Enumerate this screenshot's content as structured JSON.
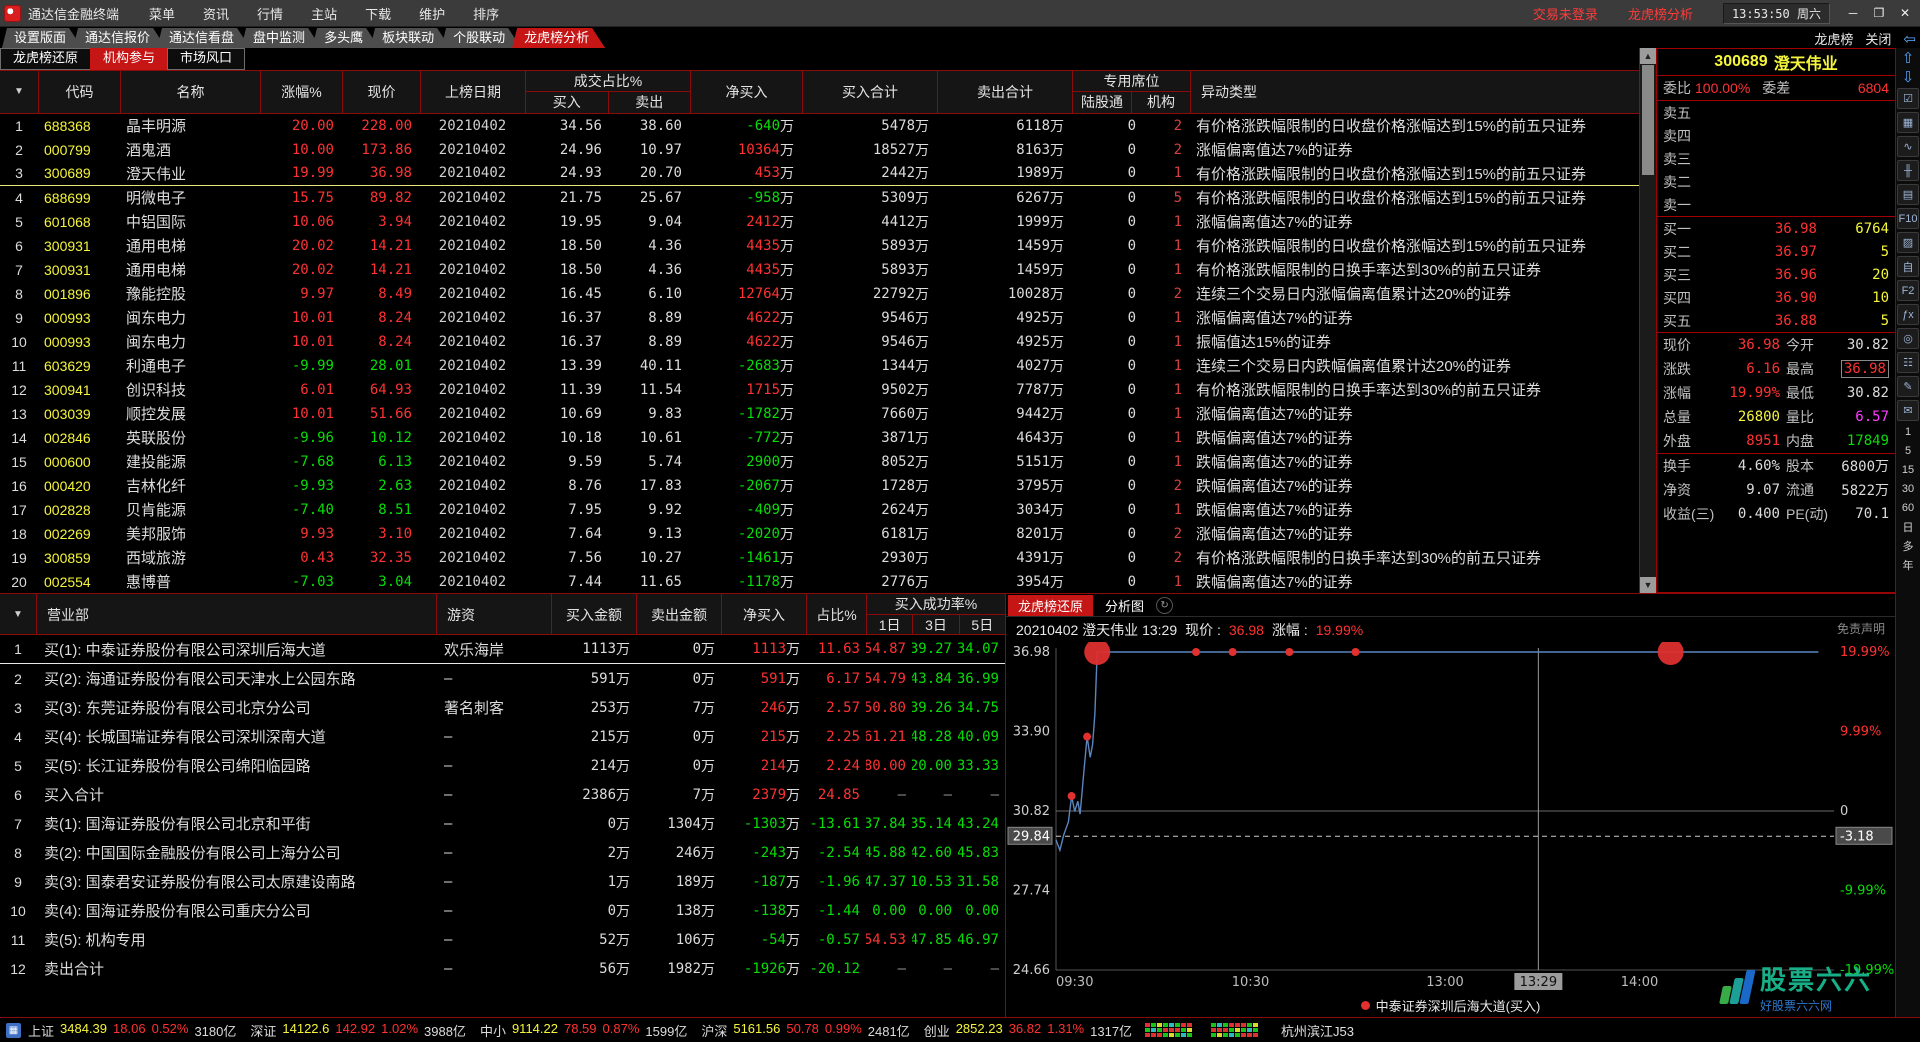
{
  "titlebar": {
    "app": "通达信金融终端",
    "menus": [
      "菜单",
      "资讯",
      "行情",
      "主站",
      "下载",
      "维护",
      "排序"
    ],
    "trade_status": "交易未登录",
    "page_title": "龙虎榜分析",
    "time": "13:53:50",
    "weekday": "周六",
    "window_buttons": [
      "─",
      "❐",
      "✕"
    ]
  },
  "tabs": {
    "items": [
      "设置版面",
      "通达信报价",
      "通达信看盘",
      "盘中监测",
      "多头鹰",
      "板块联动",
      "个股联动",
      "龙虎榜分析"
    ],
    "active_index": 7,
    "right_label": "龙虎榜",
    "close_label": "关闭"
  },
  "subtabs": {
    "items": [
      "龙虎榜还原",
      "机构参与",
      "市场风口"
    ],
    "active_index": 1
  },
  "glyphs": {
    "sort": "▼",
    "scroll_up": "▲",
    "scroll_down": "▼",
    "back_arrow": "⇦",
    "refresh": "↻",
    "menu_grid": "▦"
  },
  "main_table": {
    "columns": {
      "index": "▼",
      "code": "代码",
      "name": "名称",
      "pct": "涨幅%",
      "price": "现价",
      "date": "上榜日期",
      "trade_group": "成交占比%",
      "trade_buy": "买入",
      "trade_sell": "卖出",
      "net": "净买入",
      "buy_total": "买入合计",
      "sell_total": "卖出合计",
      "seat_group": "专用席位",
      "seat_lgt": "陆股通",
      "seat_org": "机构",
      "type": "异动类型"
    },
    "selected_row": 2,
    "rows": [
      [
        "688368",
        "晶丰明源",
        "20.00",
        "228.00",
        "20210402",
        "34.56",
        "38.60",
        "-640万",
        "5478万",
        "6118万",
        "0",
        "2",
        "有价格涨跌幅限制的日收盘价格涨幅达到15%的前五只证券"
      ],
      [
        "000799",
        "酒鬼酒",
        "10.00",
        "173.86",
        "20210402",
        "24.96",
        "10.97",
        "10364万",
        "18527万",
        "8163万",
        "0",
        "2",
        "涨幅偏离值达7%的证券"
      ],
      [
        "300689",
        "澄天伟业",
        "19.99",
        "36.98",
        "20210402",
        "24.93",
        "20.70",
        "453万",
        "2442万",
        "1989万",
        "0",
        "1",
        "有价格涨跌幅限制的日收盘价格涨幅达到15%的前五只证券"
      ],
      [
        "688699",
        "明微电子",
        "15.75",
        "89.82",
        "20210402",
        "21.75",
        "25.67",
        "-958万",
        "5309万",
        "6267万",
        "0",
        "5",
        "有价格涨跌幅限制的日收盘价格涨幅达到15%的前五只证券"
      ],
      [
        "601068",
        "中铝国际",
        "10.06",
        "3.94",
        "20210402",
        "19.95",
        "9.04",
        "2412万",
        "4412万",
        "1999万",
        "0",
        "1",
        "涨幅偏离值达7%的证券"
      ],
      [
        "300931",
        "通用电梯",
        "20.02",
        "14.21",
        "20210402",
        "18.50",
        "4.36",
        "4435万",
        "5893万",
        "1459万",
        "0",
        "1",
        "有价格涨跌幅限制的日收盘价格涨幅达到15%的前五只证券"
      ],
      [
        "300931",
        "通用电梯",
        "20.02",
        "14.21",
        "20210402",
        "18.50",
        "4.36",
        "4435万",
        "5893万",
        "1459万",
        "0",
        "1",
        "有价格涨跌幅限制的日换手率达到30%的前五只证券"
      ],
      [
        "001896",
        "豫能控股",
        "9.97",
        "8.49",
        "20210402",
        "16.45",
        "6.10",
        "12764万",
        "22792万",
        "10028万",
        "0",
        "2",
        "连续三个交易日内涨幅偏离值累计达20%的证券"
      ],
      [
        "000993",
        "闽东电力",
        "10.01",
        "8.24",
        "20210402",
        "16.37",
        "8.89",
        "4622万",
        "9546万",
        "4925万",
        "0",
        "1",
        "涨幅偏离值达7%的证券"
      ],
      [
        "000993",
        "闽东电力",
        "10.01",
        "8.24",
        "20210402",
        "16.37",
        "8.89",
        "4622万",
        "9546万",
        "4925万",
        "0",
        "1",
        "振幅值达15%的证券"
      ],
      [
        "603629",
        "利通电子",
        "-9.99",
        "28.01",
        "20210402",
        "13.39",
        "40.11",
        "-2683万",
        "1344万",
        "4027万",
        "0",
        "1",
        "连续三个交易日内跌幅偏离值累计达20%的证券"
      ],
      [
        "300941",
        "创识科技",
        "6.01",
        "64.93",
        "20210402",
        "11.39",
        "11.54",
        "1715万",
        "9502万",
        "7787万",
        "0",
        "1",
        "有价格涨跌幅限制的日换手率达到30%的前五只证券"
      ],
      [
        "003039",
        "顺控发展",
        "10.01",
        "51.66",
        "20210402",
        "10.69",
        "9.83",
        "-1782万",
        "7660万",
        "9442万",
        "0",
        "1",
        "涨幅偏离值达7%的证券"
      ],
      [
        "002846",
        "英联股份",
        "-9.96",
        "10.12",
        "20210402",
        "10.18",
        "10.61",
        "-772万",
        "3871万",
        "4643万",
        "0",
        "1",
        "跌幅偏离值达7%的证券"
      ],
      [
        "000600",
        "建投能源",
        "-7.68",
        "6.13",
        "20210402",
        "9.59",
        "5.74",
        "2900万",
        "8052万",
        "5151万",
        "0",
        "1",
        "跌幅偏离值达7%的证券",
        "dn"
      ],
      [
        "000420",
        "吉林化纤",
        "-9.93",
        "2.63",
        "20210402",
        "8.76",
        "17.83",
        "-2067万",
        "1728万",
        "3795万",
        "0",
        "2",
        "跌幅偏离值达7%的证券"
      ],
      [
        "002828",
        "贝肯能源",
        "-7.40",
        "8.51",
        "20210402",
        "7.95",
        "9.92",
        "-409万",
        "2624万",
        "3034万",
        "0",
        "1",
        "跌幅偏离值达7%的证券"
      ],
      [
        "002269",
        "美邦服饰",
        "9.93",
        "3.10",
        "20210402",
        "7.64",
        "9.13",
        "-2020万",
        "6181万",
        "8201万",
        "0",
        "2",
        "涨幅偏离值达7%的证券"
      ],
      [
        "300859",
        "西域旅游",
        "0.43",
        "32.35",
        "20210402",
        "7.56",
        "10.27",
        "-1461万",
        "2930万",
        "4391万",
        "0",
        "2",
        "有价格涨跌幅限制的日换手率达到30%的前五只证券"
      ],
      [
        "002554",
        "惠博普",
        "-7.03",
        "3.04",
        "20210402",
        "7.44",
        "11.65",
        "-1178万",
        "2776万",
        "3954万",
        "0",
        "1",
        "跌幅偏离值达7%的证券"
      ]
    ]
  },
  "quote": {
    "code": "300689",
    "name": "澄天伟业",
    "weibi_label": "委比",
    "weibi": "100.00%",
    "weicha_label": "委差",
    "weicha": "6804",
    "sell_levels": [
      {
        "l": "卖五",
        "p": "",
        "q": ""
      },
      {
        "l": "卖四",
        "p": "",
        "q": ""
      },
      {
        "l": "卖三",
        "p": "",
        "q": ""
      },
      {
        "l": "卖二",
        "p": "",
        "q": ""
      },
      {
        "l": "卖一",
        "p": "",
        "q": ""
      }
    ],
    "buy_levels": [
      {
        "l": "买一",
        "p": "36.98",
        "q": "6764"
      },
      {
        "l": "买二",
        "p": "36.97",
        "q": "5"
      },
      {
        "l": "买三",
        "p": "36.96",
        "q": "20"
      },
      {
        "l": "买四",
        "p": "36.90",
        "q": "10"
      },
      {
        "l": "买五",
        "p": "36.88",
        "q": "5"
      }
    ],
    "stats": [
      {
        "l1": "现价",
        "v1": "36.98",
        "c1": "up",
        "l2": "今开",
        "v2": "30.82",
        "c2": "wh"
      },
      {
        "l1": "涨跌",
        "v1": "6.16",
        "c1": "up",
        "l2": "最高",
        "v2": "36.98",
        "c2": "up",
        "box2": true
      },
      {
        "l1": "涨幅",
        "v1": "19.99%",
        "c1": "up",
        "l2": "最低",
        "v2": "30.82",
        "c2": "wh"
      },
      {
        "l1": "总量",
        "v1": "26800",
        "c1": "yl",
        "l2": "量比",
        "v2": "6.57",
        "c2": "mg"
      },
      {
        "l1": "外盘",
        "v1": "8951",
        "c1": "up",
        "l2": "内盘",
        "v2": "17849",
        "c2": "dn"
      },
      {
        "l1": "换手",
        "v1": "4.60%",
        "c1": "wh",
        "l2": "股本",
        "v2": "6800万",
        "c2": "wh"
      },
      {
        "l1": "净资",
        "v1": "9.07",
        "c1": "wh",
        "l2": "流通",
        "v2": "5822万",
        "c2": "wh"
      },
      {
        "l1": "收益(三)",
        "v1": "0.400",
        "c1": "wh",
        "l2": "PE(动)",
        "v2": "70.1",
        "c2": "wh"
      }
    ]
  },
  "seat_table": {
    "columns": {
      "index": "▼",
      "seat": "营业部",
      "youzi": "游资",
      "buy_amt": "买入金额",
      "sell_amt": "卖出金额",
      "net": "净买入",
      "ratio": "占比%",
      "rate_group": "买入成功率%",
      "d1": "1日",
      "d3": "3日",
      "d5": "5日"
    },
    "selected_row": 0,
    "rows": [
      [
        "买(1): 中泰证券股份有限公司深圳后海大道",
        "欢乐海岸",
        "1113万",
        "0万",
        "1113万",
        "11.63",
        "54.87",
        "39.27",
        "34.07"
      ],
      [
        "买(2): 海通证券股份有限公司天津水上公园东路",
        "–",
        "591万",
        "0万",
        "591万",
        "6.17",
        "54.79",
        "43.84",
        "36.99"
      ],
      [
        "买(3): 东莞证券股份有限公司北京分公司",
        "著名刺客",
        "253万",
        "7万",
        "246万",
        "2.57",
        "50.80",
        "39.26",
        "34.75"
      ],
      [
        "买(4): 长城国瑞证券有限公司深圳深南大道",
        "–",
        "215万",
        "0万",
        "215万",
        "2.25",
        "61.21",
        "48.28",
        "40.09"
      ],
      [
        "买(5): 长江证券股份有限公司绵阳临园路",
        "–",
        "214万",
        "0万",
        "214万",
        "2.24",
        "80.00",
        "20.00",
        "33.33"
      ],
      [
        "买入合计",
        "–",
        "2386万",
        "7万",
        "2379万",
        "24.85",
        "–",
        "–",
        "–"
      ],
      [
        "卖(1): 国海证券股份有限公司北京和平街",
        "–",
        "0万",
        "1304万",
        "-1303万",
        "-13.61",
        "37.84",
        "35.14",
        "43.24"
      ],
      [
        "卖(2): 中国国际金融股份有限公司上海分公司",
        "–",
        "2万",
        "246万",
        "-243万",
        "-2.54",
        "45.88",
        "42.60",
        "45.83"
      ],
      [
        "卖(3): 国泰君安证券股份有限公司太原建设南路",
        "–",
        "1万",
        "189万",
        "-187万",
        "-1.96",
        "47.37",
        "10.53",
        "31.58"
      ],
      [
        "卖(4): 国海证券股份有限公司重庆分公司",
        "–",
        "0万",
        "138万",
        "-138万",
        "-1.44",
        "0.00",
        "0.00",
        "0.00"
      ],
      [
        "卖(5): 机构专用",
        "–",
        "52万",
        "106万",
        "-54万",
        "-0.57",
        "54.53",
        "47.85",
        "46.97"
      ],
      [
        "卖出合计",
        "–",
        "56万",
        "1982万",
        "-1926万",
        "-20.12",
        "–",
        "–",
        "–"
      ]
    ]
  },
  "chart_tabs": {
    "items": [
      "龙虎榜还原",
      "分析图"
    ],
    "active_index": 0
  },
  "chart_header": {
    "prefix": "20210402 澄天伟业 13:29",
    "price_label": "现价 :",
    "price": "36.98",
    "pct_label": "涨幅 :",
    "pct": "19.99%"
  },
  "chart_data": {
    "type": "line",
    "title": "20210402 澄天伟业 13:29 现价: 36.98 涨幅: 19.99%",
    "xlabel": "",
    "ylabel": "",
    "ylim": [
      24.66,
      36.98
    ],
    "prev_close": 30.82,
    "x_ticks": [
      {
        "t": 0,
        "label": "09:30"
      },
      {
        "t": 0.25,
        "label": "10:30"
      },
      {
        "t": 0.5,
        "label": "13:00"
      },
      {
        "t": 0.62,
        "label": "13:29",
        "boxed": true
      },
      {
        "t": 0.75,
        "label": "14:00"
      }
    ],
    "y_left_labels": [
      {
        "p": 36.98,
        "label": "36.98"
      },
      {
        "p": 33.9,
        "label": "33.90"
      },
      {
        "p": 30.82,
        "label": "30.82"
      },
      {
        "p": 29.84,
        "label": "29.84",
        "boxed": true
      },
      {
        "p": 27.74,
        "label": "27.74"
      },
      {
        "p": 24.66,
        "label": "24.66"
      }
    ],
    "y_right_labels": [
      {
        "p": 36.98,
        "label": "19.99%",
        "cls": "up"
      },
      {
        "p": 33.9,
        "label": "9.99%",
        "cls": "up"
      },
      {
        "p": 30.82,
        "label": "0",
        "cls": "wh"
      },
      {
        "p": 29.84,
        "label": "-3.18",
        "cls": "wh",
        "boxed": true
      },
      {
        "p": 27.74,
        "label": "-9.99%",
        "cls": "dn"
      },
      {
        "p": 24.66,
        "label": "-19.99%",
        "cls": "dn"
      }
    ],
    "crosshair": {
      "t": 0.62,
      "price": 29.84
    },
    "series": [
      {
        "name": "分时价格",
        "color": "#5b85c0",
        "points": [
          [
            0,
            29.7
          ],
          [
            0.005,
            29.3
          ],
          [
            0.01,
            29.9
          ],
          [
            0.016,
            30.4
          ],
          [
            0.02,
            31.4
          ],
          [
            0.024,
            30.8
          ],
          [
            0.028,
            31.2
          ],
          [
            0.031,
            30.7
          ],
          [
            0.036,
            32.4
          ],
          [
            0.04,
            33.7
          ],
          [
            0.044,
            32.9
          ],
          [
            0.047,
            33.4
          ],
          [
            0.05,
            34.6
          ],
          [
            0.053,
            36.98
          ],
          [
            0.98,
            36.98
          ]
        ]
      }
    ],
    "markers": {
      "small": [
        [
          0.02,
          31.4
        ],
        [
          0.04,
          33.7
        ],
        [
          0.18,
          36.98
        ],
        [
          0.227,
          36.98
        ],
        [
          0.3,
          36.98
        ],
        [
          0.385,
          36.98
        ]
      ],
      "big": [
        [
          0.053,
          36.98
        ],
        [
          0.79,
          36.98
        ]
      ]
    },
    "legend": [
      {
        "color": "#e03030",
        "label": "中泰证券深圳后海大道(买入)"
      }
    ],
    "legend_position": "bottom",
    "grid": false,
    "disclaimer": "免责声明"
  },
  "right_toolbar": {
    "icons": [
      {
        "g": "⇧",
        "n": "scroll-up-icon"
      },
      {
        "g": "⇩",
        "n": "scroll-down-icon"
      },
      {
        "g": "☑",
        "n": "report-icon"
      },
      {
        "g": "▦",
        "n": "quote-grid-icon"
      },
      {
        "g": "∿",
        "n": "trend-chart-icon"
      },
      {
        "g": "╫",
        "n": "kline-chart-icon"
      },
      {
        "g": "▤",
        "n": "info-panel-icon"
      },
      {
        "g": "F10",
        "n": "f10-icon"
      },
      {
        "g": "▨",
        "n": "graph-icon"
      },
      {
        "g": "自",
        "n": "custom-stock-icon"
      },
      {
        "g": "F2",
        "n": "f2-icon"
      },
      {
        "g": "ƒx",
        "n": "formula-icon"
      },
      {
        "g": "◎",
        "n": "radar-icon"
      },
      {
        "g": "☷",
        "n": "list-icon"
      },
      {
        "g": "✎",
        "n": "edit-icon"
      },
      {
        "g": "✉",
        "n": "message-icon"
      }
    ],
    "periods": [
      "1",
      "5",
      "15",
      "30",
      "60",
      "日",
      "多",
      "年"
    ]
  },
  "status_bar": {
    "indices": [
      {
        "name": "上证",
        "value": "3484.39",
        "change": "18.06",
        "pct": "0.52%",
        "amount": "3180亿"
      },
      {
        "name": "深证",
        "value": "14122.6",
        "change": "142.92",
        "pct": "1.02%",
        "amount": "3988亿"
      },
      {
        "name": "中小",
        "value": "9114.22",
        "change": "78.59",
        "pct": "0.87%",
        "amount": "1599亿"
      },
      {
        "name": "沪深",
        "value": "5161.56",
        "change": "50.78",
        "pct": "0.99%",
        "amount": "2481亿"
      },
      {
        "name": "创业",
        "value": "2852.23",
        "change": "36.82",
        "pct": "1.31%",
        "amount": "1317亿"
      }
    ],
    "station": "杭州滨江J53"
  },
  "watermark": {
    "line1": "股票六六",
    "line2": "好股票六六网"
  }
}
